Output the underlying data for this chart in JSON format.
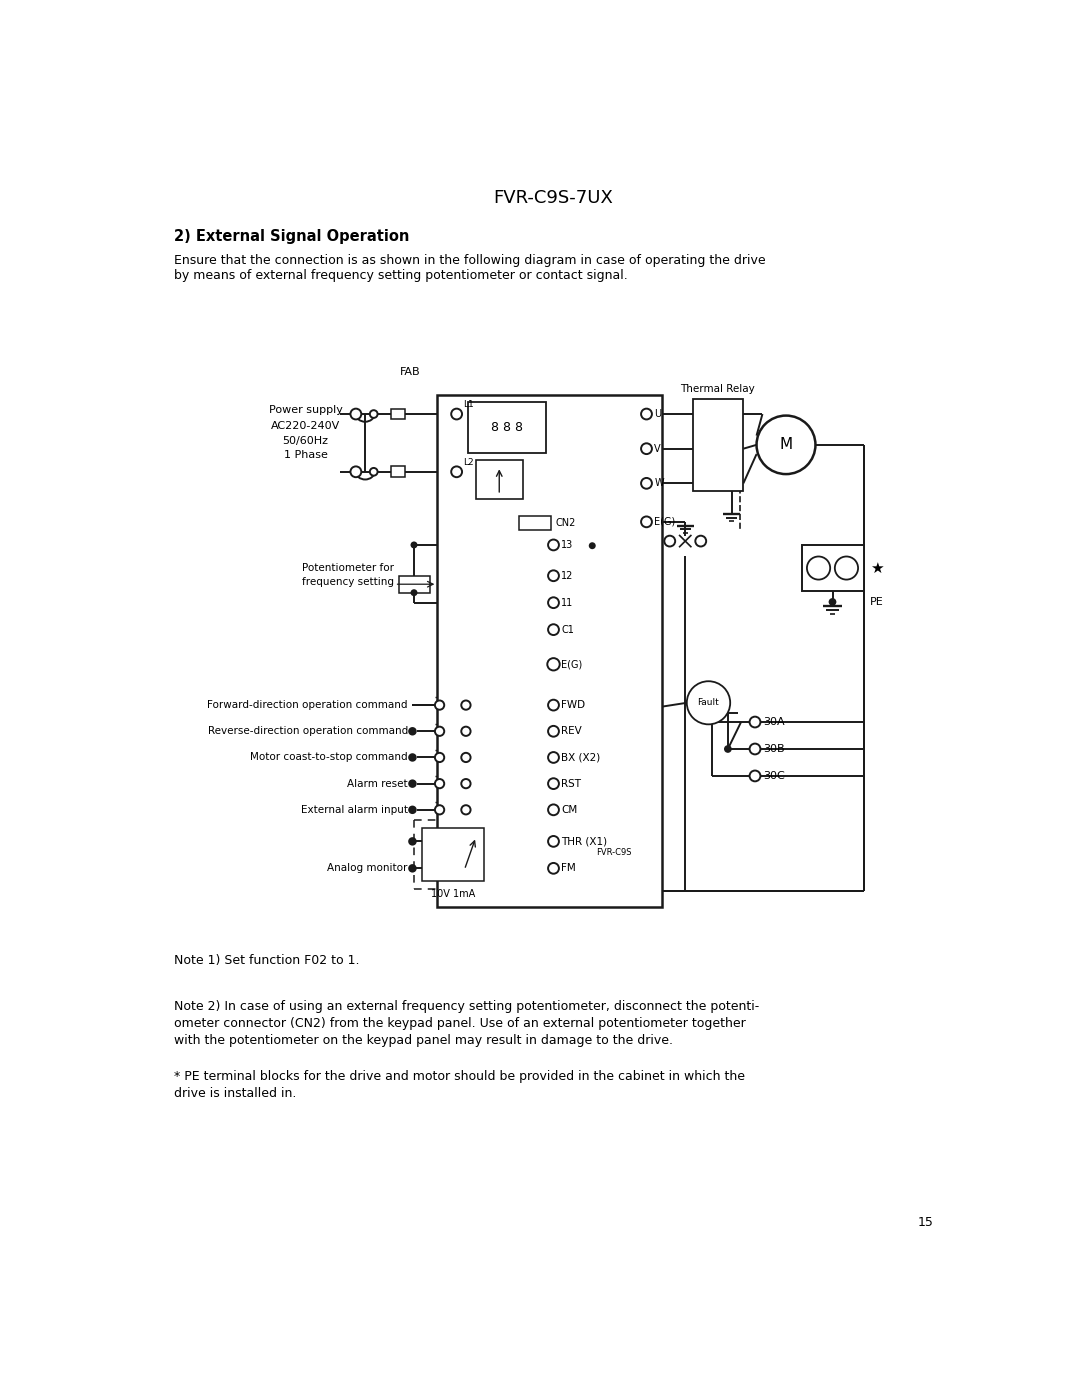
{
  "title": "FVR-C9S-7UX",
  "section_title": "2) External Signal Operation",
  "intro_line1": "Ensure that the connection is as shown in the following diagram in case of operating the drive",
  "intro_line2": "by means of external frequency setting potentiometer or contact signal.",
  "note1": "Note 1) Set function F02 to 1.",
  "note2a": "Note 2) In case of using an external frequency setting potentiometer, disconnect the potenti-",
  "note2b": "ometer connector (CN2) from the keypad panel. Use of an external potentiometer together",
  "note2c": "with the potentiometer on the keypad panel may result in damage to the drive.",
  "note3a": "* PE terminal blocks for the drive and motor should be provided in the cabinet in which the",
  "note3b": "drive is installed in.",
  "page_num": "15",
  "bg_color": "#ffffff",
  "line_color": "#1a1a1a"
}
